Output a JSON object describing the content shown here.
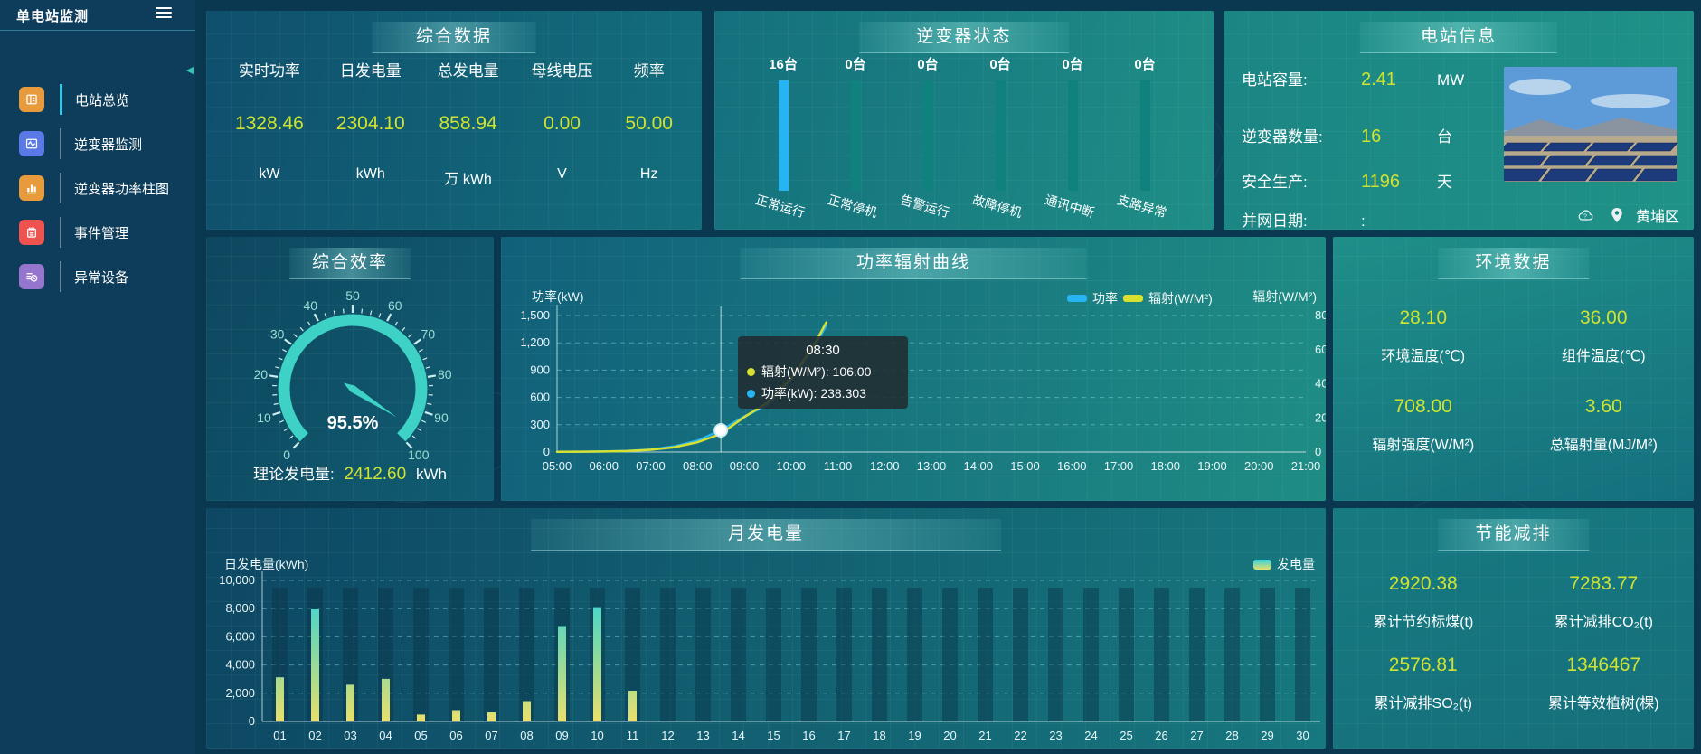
{
  "app": {
    "title": "单电站监测"
  },
  "colors": {
    "value_yellow": "#cfe32f",
    "accent_cyan": "#2fc9e8",
    "power_line": "#27b4f2",
    "radiation_line": "#d8e030",
    "bar_top": "#31d3e0",
    "bar_bottom": "#e9e06b",
    "inverter_active_bar": "#27b4f2",
    "inverter_idle_bar": "#10827e",
    "gauge": "#3ed2c6"
  },
  "sidebar": {
    "items": [
      {
        "label": "电站总览",
        "icon": "overview-icon",
        "color": "#e79b3c",
        "active": true
      },
      {
        "label": "逆变器监测",
        "icon": "inverter-monitor-icon",
        "color": "#5a78e6",
        "active": false
      },
      {
        "label": "逆变器功率柱图",
        "icon": "inverter-power-bars-icon",
        "color": "#e79b3c",
        "active": false
      },
      {
        "label": "事件管理",
        "icon": "event-management-icon",
        "color": "#ef5350",
        "active": false
      },
      {
        "label": "异常设备",
        "icon": "abnormal-device-icon",
        "color": "#9575cd",
        "active": false
      }
    ]
  },
  "panels": {
    "summary": {
      "title": "综合数据",
      "metrics": [
        {
          "label": "实时功率",
          "value": "1328.46",
          "unit": "kW"
        },
        {
          "label": "日发电量",
          "value": "2304.10",
          "unit": "kWh"
        },
        {
          "label": "总发电量",
          "value": "858.94",
          "unit": "万 kWh"
        },
        {
          "label": "母线电压",
          "value": "0.00",
          "unit": "V"
        },
        {
          "label": "频率",
          "value": "50.00",
          "unit": "Hz"
        }
      ]
    },
    "inverter_status": {
      "title": "逆变器状态",
      "bars": [
        {
          "count": "16台",
          "label": "正常运行",
          "highlight": true
        },
        {
          "count": "0台",
          "label": "正常停机",
          "highlight": false
        },
        {
          "count": "0台",
          "label": "告警运行",
          "highlight": false
        },
        {
          "count": "0台",
          "label": "故障停机",
          "highlight": false
        },
        {
          "count": "0台",
          "label": "通讯中断",
          "highlight": false
        },
        {
          "count": "0台",
          "label": "支路异常",
          "highlight": false
        }
      ]
    },
    "station_info": {
      "title": "电站信息",
      "rows": [
        {
          "label": "电站容量:",
          "value": "2.41",
          "unit": "MW",
          "white": false
        },
        {
          "label": "逆变器数量:",
          "value": "16",
          "unit": "台",
          "white": false
        },
        {
          "label": "安全生产:",
          "value": "1196",
          "unit": "天",
          "white": false
        },
        {
          "label": "并网日期:",
          "value": ":",
          "unit": "",
          "white": true
        }
      ],
      "location": "黄埔区"
    },
    "efficiency": {
      "title": "综合效率",
      "footer_label": "理论发电量:",
      "footer_value": "2412.60",
      "footer_unit": "kWh"
    },
    "curve": {
      "title": "功率辐射曲线"
    },
    "environment": {
      "title": "环境数据",
      "metrics": [
        {
          "value": "28.10",
          "label": "环境温度(℃)"
        },
        {
          "value": "36.00",
          "label": "组件温度(℃)"
        },
        {
          "value": "708.00",
          "label": "辐射强度(W/M²)"
        },
        {
          "value": "3.60",
          "label": "总辐射量(MJ/M²)"
        }
      ]
    },
    "monthly": {
      "title": "月发电量"
    },
    "saving": {
      "title": "节能减排",
      "metrics": [
        {
          "value": "2920.38",
          "label": "累计节约标煤(t)"
        },
        {
          "value": "7283.77",
          "label": "累计减排CO₂(t)"
        },
        {
          "value": "2576.81",
          "label": "累计减排SO₂(t)"
        },
        {
          "value": "1346467",
          "label": "累计等效植树(棵)"
        }
      ]
    }
  },
  "chart_data": [
    {
      "id": "efficiency-gauge",
      "type": "gauge",
      "title": "综合效率",
      "value": 95.5,
      "min": 0,
      "max": 100,
      "display_label": "95.5%",
      "tick_labels": [
        "0",
        "10",
        "20",
        "30",
        "40",
        "50",
        "60",
        "70",
        "80",
        "90",
        "100"
      ]
    },
    {
      "id": "power-radiation-curve",
      "type": "line",
      "title": "功率辐射曲线",
      "x": [
        "05:00",
        "05:30",
        "06:00",
        "06:30",
        "07:00",
        "07:30",
        "08:00",
        "08:30",
        "09:00",
        "09:30",
        "10:00",
        "10:30",
        "10:45"
      ],
      "series": [
        {
          "name": "功率",
          "axis": "left",
          "color": "#27b4f2",
          "values": [
            2,
            3,
            6,
            12,
            28,
            62,
            125,
            238.3,
            390,
            520,
            790,
            1160,
            1390
          ]
        },
        {
          "name": "辐射(W/M²)",
          "axis": "right",
          "color": "#d8e030",
          "values": [
            1,
            2,
            3,
            6,
            13,
            28,
            57,
            106,
            205,
            290,
            430,
            630,
            759
          ]
        }
      ],
      "y_left": {
        "label": "功率(kW)",
        "min": 0,
        "max": 1500,
        "tick_labels": [
          "0",
          "300",
          "600",
          "900",
          "1,200",
          "1,500"
        ]
      },
      "y_right": {
        "label": "辐射(W/M²)",
        "min": 0,
        "max": 800,
        "tick_labels": [
          "0",
          "200",
          "400",
          "600",
          "800"
        ]
      },
      "x_ticks": [
        "05:00",
        "06:00",
        "07:00",
        "08:00",
        "09:00",
        "10:00",
        "11:00",
        "12:00",
        "13:00",
        "14:00",
        "15:00",
        "16:00",
        "17:00",
        "18:00",
        "19:00",
        "20:00",
        "21:00"
      ],
      "tooltip": {
        "time": "08:30",
        "items": [
          {
            "color": "#d8e030",
            "text": "辐射(W/M²): 106.00"
          },
          {
            "color": "#27b4f2",
            "text": "功率(kW): 238.303"
          }
        ],
        "marker_x": "08:30",
        "marker_series": "功率"
      },
      "legend_position": "top"
    },
    {
      "id": "monthly-energy",
      "type": "bar",
      "title": "月发电量",
      "ylabel": "日发电量(kWh)",
      "legend": "发电量",
      "categories": [
        "01",
        "02",
        "03",
        "04",
        "05",
        "06",
        "07",
        "08",
        "09",
        "10",
        "11",
        "12",
        "13",
        "14",
        "15",
        "16",
        "17",
        "18",
        "19",
        "20",
        "21",
        "22",
        "23",
        "24",
        "25",
        "26",
        "27",
        "28",
        "29",
        "30"
      ],
      "values": [
        3130,
        7950,
        2600,
        3020,
        490,
        800,
        660,
        1440,
        6760,
        8100,
        2180,
        0,
        0,
        0,
        0,
        0,
        0,
        0,
        0,
        0,
        0,
        0,
        0,
        0,
        0,
        0,
        0,
        0,
        0,
        0
      ],
      "ylim": [
        0,
        10000
      ],
      "ytick_labels": [
        "0",
        "2,000",
        "4,000",
        "6,000",
        "8,000",
        "10,000"
      ],
      "grid": true
    }
  ]
}
